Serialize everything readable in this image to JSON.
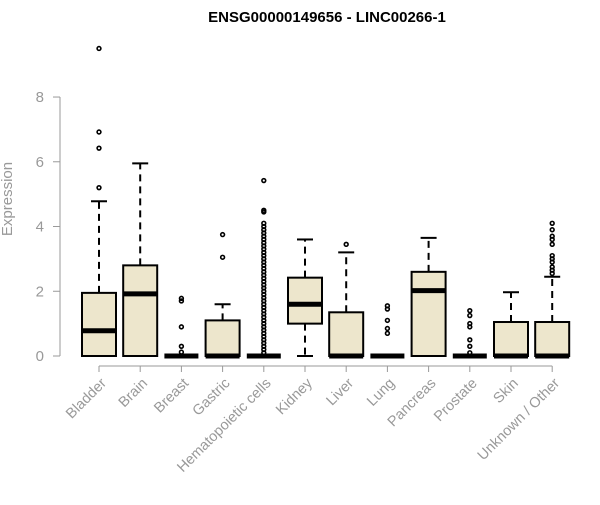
{
  "chart_data": {
    "type": "box",
    "title": "ENSG00000149656 - LINC00266-1",
    "xlabel": "",
    "ylabel": "Expression",
    "ylim": [
      0,
      9.7
    ],
    "yticks": [
      0,
      2,
      4,
      6,
      8
    ],
    "grid": false,
    "legend": "none",
    "colors": {
      "box_fill": "#EDE6CC",
      "stroke": "#000000",
      "axis_text": "#999999"
    },
    "categories": [
      "Bladder",
      "Brain",
      "Breast",
      "Gastric",
      "Hematopoietic cells",
      "Kidney",
      "Liver",
      "Lung",
      "Pancreas",
      "Prostate",
      "Skin",
      "Unknown / Other"
    ],
    "boxes": [
      {
        "q1": 0,
        "median": 0.78,
        "q3": 1.95,
        "whisker_low": 0,
        "whisker_high": 4.78,
        "outliers": [
          5.2,
          6.42,
          6.92,
          9.5
        ]
      },
      {
        "q1": 0,
        "median": 1.92,
        "q3": 2.8,
        "whisker_low": 0,
        "whisker_high": 5.95,
        "outliers": []
      },
      {
        "q1": 0,
        "median": 0,
        "q3": 0,
        "whisker_low": 0,
        "whisker_high": 0,
        "outliers": [
          0.12,
          0.3,
          0.9,
          1.7,
          1.78
        ]
      },
      {
        "q1": 0,
        "median": 0,
        "q3": 1.1,
        "whisker_low": 0,
        "whisker_high": 1.6,
        "outliers": [
          3.05,
          3.75
        ]
      },
      {
        "q1": 0,
        "median": 0,
        "q3": 0,
        "whisker_low": 0,
        "whisker_high": 0,
        "outliers": [
          0.1,
          0.2,
          0.3,
          0.4,
          0.5,
          0.6,
          0.7,
          0.8,
          0.9,
          1.0,
          1.1,
          1.2,
          1.3,
          1.4,
          1.5,
          1.6,
          1.7,
          1.8,
          1.9,
          2.0,
          2.1,
          2.2,
          2.3,
          2.4,
          2.5,
          2.6,
          2.7,
          2.8,
          2.9,
          3.0,
          3.1,
          3.2,
          3.3,
          3.4,
          3.5,
          3.6,
          3.7,
          3.8,
          3.9,
          4.0,
          4.1,
          4.45,
          4.5,
          5.42
        ]
      },
      {
        "q1": 1.0,
        "median": 1.6,
        "q3": 2.42,
        "whisker_low": 0,
        "whisker_high": 3.6,
        "outliers": []
      },
      {
        "q1": 0,
        "median": 0,
        "q3": 1.35,
        "whisker_low": 0,
        "whisker_high": 3.2,
        "outliers": [
          3.45
        ]
      },
      {
        "q1": 0,
        "median": 0,
        "q3": 0,
        "whisker_low": 0,
        "whisker_high": 0,
        "outliers": [
          0.7,
          0.85,
          1.1,
          1.45,
          1.55
        ]
      },
      {
        "q1": 0,
        "median": 2.02,
        "q3": 2.6,
        "whisker_low": 0,
        "whisker_high": 3.65,
        "outliers": []
      },
      {
        "q1": 0,
        "median": 0,
        "q3": 0,
        "whisker_low": 0,
        "whisker_high": 0,
        "outliers": [
          0.1,
          0.3,
          0.5,
          0.9,
          1.0,
          1.25,
          1.4
        ]
      },
      {
        "q1": 0,
        "median": 0,
        "q3": 1.05,
        "whisker_low": 0,
        "whisker_high": 1.97,
        "outliers": []
      },
      {
        "q1": 0,
        "median": 0,
        "q3": 1.05,
        "whisker_low": 0,
        "whisker_high": 2.45,
        "outliers": [
          2.55,
          2.65,
          2.75,
          2.9,
          3.0,
          3.1,
          3.45,
          3.6,
          3.7,
          3.9,
          4.1
        ]
      }
    ]
  }
}
